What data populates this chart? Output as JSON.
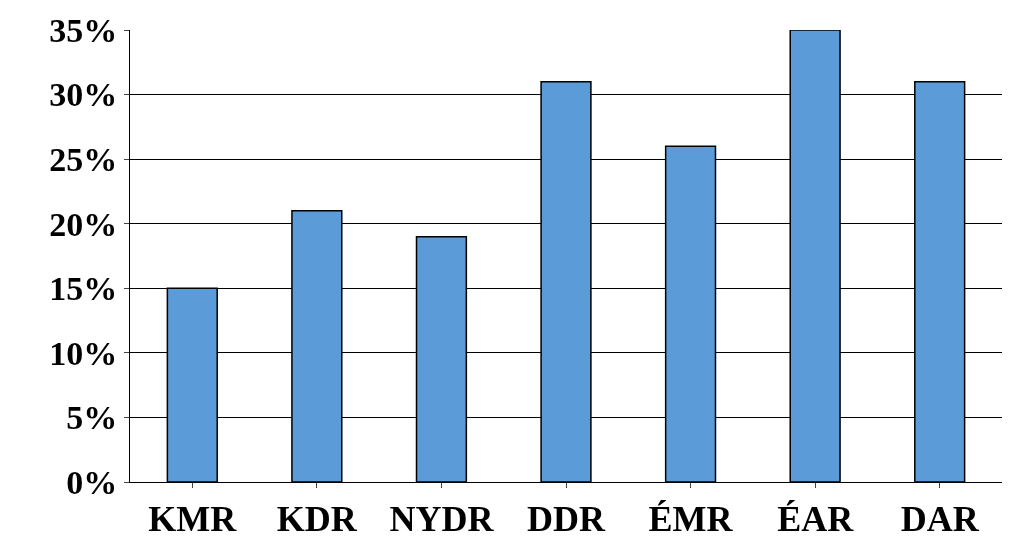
{
  "chart_data": {
    "type": "bar",
    "categories": [
      "KMR",
      "KDR",
      "NYDR",
      "DDR",
      "ÉMR",
      "ÉAR",
      "DAR"
    ],
    "values": [
      15,
      21,
      19,
      31,
      26,
      35,
      31
    ],
    "color": "#5b9bd8",
    "ylim": [
      0,
      35
    ],
    "yticks": [
      {
        "value": 0,
        "label": "0%"
      },
      {
        "value": 5,
        "label": "5%"
      },
      {
        "value": 10,
        "label": "10%"
      },
      {
        "value": 15,
        "label": "15%"
      },
      {
        "value": 20,
        "label": "20%"
      },
      {
        "value": 25,
        "label": "25%"
      },
      {
        "value": 30,
        "label": "30%"
      },
      {
        "value": 35,
        "label": "35%"
      }
    ],
    "grid": "y",
    "legend": false
  }
}
